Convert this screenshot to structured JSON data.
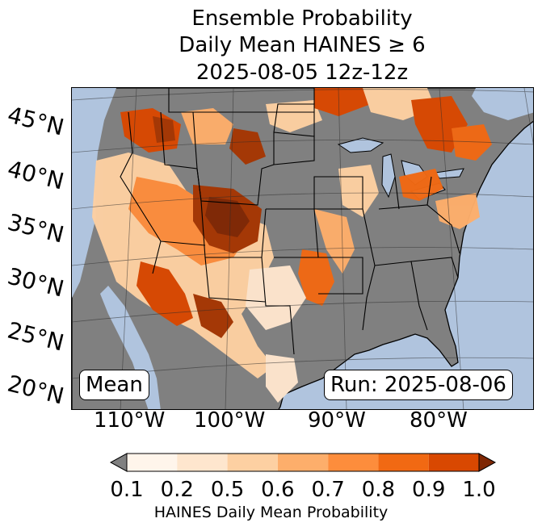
{
  "title": {
    "line1": "Ensemble Probability",
    "line2": "Daily Mean HAINES ≥ 6",
    "line3": "2025-08-05 12z-12z"
  },
  "map": {
    "latitude_labels": [
      "45°N",
      "40°N",
      "35°N",
      "30°N",
      "25°N",
      "20°N"
    ],
    "longitude_labels": [
      "110°W",
      "100°W",
      "90°W",
      "80°W"
    ],
    "colors": {
      "ocean": "#b0c4de",
      "land_no_data": "#808080",
      "borders": "#000000"
    }
  },
  "annotations": {
    "stat_label": "Mean",
    "run_label": "Run: 2025-08-06"
  },
  "colorbar": {
    "ticks": [
      "0.1",
      "0.2",
      "0.5",
      "0.6",
      "0.7",
      "0.8",
      "0.9",
      "1.0"
    ],
    "colors": [
      "#fff5eb",
      "#fee6ce",
      "#fdd0a2",
      "#fdae6b",
      "#fd8d3c",
      "#f16913",
      "#d94801",
      "#a63603",
      "#7f2704"
    ],
    "under_color": "#808080",
    "label": "HAINES Daily Mean Probability"
  }
}
